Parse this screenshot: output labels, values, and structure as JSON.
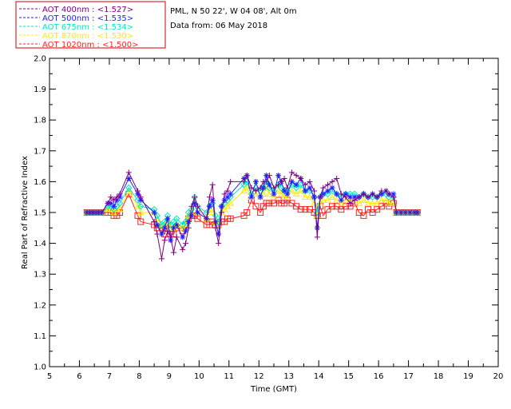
{
  "info": {
    "location": "PML, N 50 22', W 04 08', Alt 0m",
    "date_line": "Data from: 06 May 2018"
  },
  "chart_data": {
    "type": "scatter",
    "xlabel": "Time (GMT)",
    "ylabel": "Real Part of Refractive Index",
    "xlim": [
      5,
      20
    ],
    "ylim": [
      1.0,
      2.0
    ],
    "xticks": [
      "5",
      "6",
      "7",
      "8",
      "9",
      "10",
      "11",
      "12",
      "13",
      "14",
      "15",
      "16",
      "17",
      "18",
      "19",
      "20"
    ],
    "yticks": [
      "1.0",
      "1.1",
      "1.2",
      "1.3",
      "1.4",
      "1.5",
      "1.6",
      "1.7",
      "1.8",
      "1.9",
      "2.0"
    ],
    "grid": false,
    "legend_position": "top-left, outside plot",
    "x": [
      6.25,
      6.35,
      6.45,
      6.55,
      6.65,
      6.75,
      6.95,
      7.05,
      7.15,
      7.25,
      7.35,
      7.65,
      7.95,
      8.05,
      8.5,
      8.6,
      8.75,
      8.85,
      8.95,
      9.05,
      9.15,
      9.25,
      9.45,
      9.55,
      9.65,
      9.75,
      9.85,
      9.95,
      10.25,
      10.35,
      10.45,
      10.55,
      10.65,
      10.75,
      10.85,
      10.95,
      11.05,
      11.5,
      11.6,
      11.75,
      11.9,
      12.05,
      12.15,
      12.25,
      12.35,
      12.5,
      12.65,
      12.75,
      12.85,
      12.95,
      13.1,
      13.25,
      13.4,
      13.55,
      13.7,
      13.85,
      13.95,
      14.05,
      14.15,
      14.3,
      14.45,
      14.6,
      14.75,
      14.9,
      15.05,
      15.2,
      15.35,
      15.5,
      15.65,
      15.8,
      15.95,
      16.1,
      16.25,
      16.35,
      16.5,
      16.6,
      16.75,
      16.9,
      17.05,
      17.2,
      17.3
    ],
    "series": [
      {
        "name": "AOT 400nm : <1.527>",
        "color": "#800080",
        "marker": "plus",
        "values": [
          1.5,
          1.5,
          1.5,
          1.5,
          1.5,
          1.5,
          1.53,
          1.55,
          1.54,
          1.55,
          1.56,
          1.63,
          1.57,
          1.55,
          1.47,
          1.43,
          1.35,
          1.41,
          1.44,
          1.42,
          1.37,
          1.42,
          1.38,
          1.4,
          1.45,
          1.52,
          1.55,
          1.52,
          1.48,
          1.55,
          1.59,
          1.45,
          1.4,
          1.5,
          1.56,
          1.57,
          1.6,
          1.6,
          1.62,
          1.58,
          1.57,
          1.58,
          1.6,
          1.6,
          1.62,
          1.58,
          1.59,
          1.6,
          1.61,
          1.58,
          1.63,
          1.62,
          1.61,
          1.59,
          1.6,
          1.57,
          1.42,
          1.55,
          1.58,
          1.59,
          1.6,
          1.61,
          1.56,
          1.55,
          1.53,
          1.54,
          1.55,
          1.56,
          1.55,
          1.56,
          1.55,
          1.57,
          1.57,
          1.56,
          1.55,
          1.5,
          1.5,
          1.5,
          1.5,
          1.5,
          1.5
        ]
      },
      {
        "name": "AOT 500nm : <1.535>",
        "color": "#1f1fff",
        "marker": "asterisk",
        "values": [
          1.5,
          1.5,
          1.5,
          1.5,
          1.5,
          1.5,
          1.53,
          1.53,
          1.52,
          1.54,
          1.55,
          1.61,
          1.56,
          1.54,
          1.5,
          1.46,
          1.43,
          1.45,
          1.48,
          1.41,
          1.45,
          1.46,
          1.42,
          1.44,
          1.47,
          1.49,
          1.53,
          1.5,
          1.48,
          1.52,
          1.54,
          1.47,
          1.43,
          1.52,
          1.54,
          1.55,
          1.56,
          1.61,
          1.62,
          1.55,
          1.6,
          1.55,
          1.58,
          1.62,
          1.59,
          1.56,
          1.62,
          1.6,
          1.57,
          1.56,
          1.6,
          1.59,
          1.61,
          1.57,
          1.58,
          1.55,
          1.45,
          1.55,
          1.56,
          1.57,
          1.58,
          1.56,
          1.54,
          1.56,
          1.55,
          1.55,
          1.55,
          1.56,
          1.55,
          1.56,
          1.55,
          1.56,
          1.57,
          1.56,
          1.56,
          1.5,
          1.5,
          1.5,
          1.5,
          1.5,
          1.5
        ]
      },
      {
        "name": "AOT 675nm : <1.534>",
        "color": "#00e8c0",
        "marker": "diamond",
        "values": [
          1.5,
          1.5,
          1.5,
          1.5,
          1.5,
          1.5,
          1.52,
          1.52,
          1.51,
          1.52,
          1.53,
          1.58,
          1.54,
          1.52,
          1.51,
          1.49,
          1.46,
          1.47,
          1.49,
          1.46,
          1.47,
          1.48,
          1.46,
          1.47,
          1.5,
          1.51,
          1.55,
          1.52,
          1.5,
          1.52,
          1.53,
          1.49,
          1.47,
          1.52,
          1.53,
          1.54,
          1.55,
          1.59,
          1.6,
          1.56,
          1.58,
          1.57,
          1.58,
          1.6,
          1.58,
          1.57,
          1.59,
          1.58,
          1.57,
          1.57,
          1.59,
          1.58,
          1.59,
          1.57,
          1.57,
          1.55,
          1.5,
          1.55,
          1.56,
          1.56,
          1.57,
          1.56,
          1.55,
          1.56,
          1.56,
          1.56,
          1.55,
          1.56,
          1.55,
          1.55,
          1.55,
          1.56,
          1.56,
          1.55,
          1.55,
          1.5,
          1.5,
          1.5,
          1.5,
          1.5,
          1.5
        ]
      },
      {
        "name": "AOT 870nm : <1.530>",
        "color": "#ffea00",
        "marker": "triangle",
        "values": [
          1.5,
          1.5,
          1.5,
          1.5,
          1.5,
          1.5,
          1.51,
          1.51,
          1.5,
          1.51,
          1.51,
          1.57,
          1.52,
          1.5,
          1.5,
          1.48,
          1.46,
          1.46,
          1.47,
          1.45,
          1.45,
          1.46,
          1.45,
          1.46,
          1.49,
          1.5,
          1.53,
          1.5,
          1.48,
          1.5,
          1.51,
          1.47,
          1.46,
          1.5,
          1.51,
          1.52,
          1.53,
          1.57,
          1.58,
          1.55,
          1.56,
          1.55,
          1.56,
          1.58,
          1.56,
          1.55,
          1.57,
          1.56,
          1.55,
          1.55,
          1.57,
          1.56,
          1.57,
          1.55,
          1.55,
          1.53,
          1.49,
          1.53,
          1.54,
          1.54,
          1.55,
          1.54,
          1.53,
          1.54,
          1.54,
          1.54,
          1.53,
          1.54,
          1.53,
          1.53,
          1.53,
          1.54,
          1.54,
          1.53,
          1.53,
          1.5,
          1.5,
          1.5,
          1.5,
          1.5,
          1.5
        ]
      },
      {
        "name": "AOT 1020nm : <1.500>",
        "color": "#ff2020",
        "marker": "square",
        "values": [
          1.5,
          1.5,
          1.5,
          1.5,
          1.5,
          1.5,
          1.5,
          1.5,
          1.49,
          1.49,
          1.5,
          1.56,
          1.49,
          1.47,
          1.46,
          1.45,
          1.45,
          1.43,
          1.46,
          1.43,
          1.43,
          1.45,
          1.44,
          1.46,
          1.48,
          1.49,
          1.49,
          1.48,
          1.46,
          1.46,
          1.47,
          1.46,
          1.46,
          1.47,
          1.47,
          1.48,
          1.48,
          1.49,
          1.5,
          1.54,
          1.52,
          1.5,
          1.52,
          1.53,
          1.53,
          1.53,
          1.54,
          1.53,
          1.53,
          1.54,
          1.53,
          1.52,
          1.51,
          1.51,
          1.51,
          1.5,
          1.49,
          1.52,
          1.49,
          1.51,
          1.52,
          1.52,
          1.51,
          1.52,
          1.52,
          1.53,
          1.5,
          1.49,
          1.51,
          1.5,
          1.51,
          1.52,
          1.53,
          1.52,
          1.53,
          1.5,
          1.5,
          1.5,
          1.5,
          1.5,
          1.5
        ]
      }
    ]
  }
}
